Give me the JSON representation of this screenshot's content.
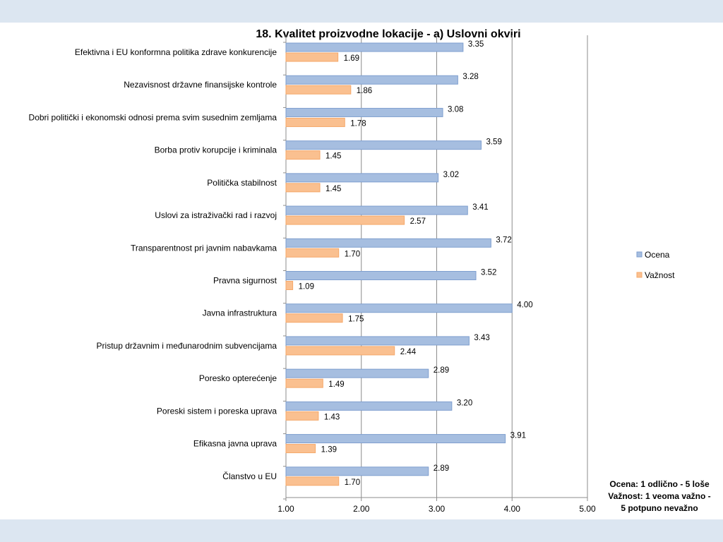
{
  "chart_data": {
    "type": "bar",
    "orientation": "horizontal",
    "title": "18. Kvalitet proizvodne lokacije - a) Uslovni okviri",
    "categories": [
      "Efektivna i EU konformna politika zdrave konkurencije",
      "Nezavisnost državne finansijske kontrole",
      "Dobri politički i ekonomski odnosi prema svim susednim zemljama",
      "Borba protiv korupcije i kriminala",
      "Politička stabilnost",
      "Uslovi za istraživački rad i razvoj",
      "Transparentnost pri javnim nabavkama",
      "Pravna sigurnost",
      "Javna infrastruktura",
      "Pristup državnim i međunarodnim subvencijama",
      "Poresko opterećenje",
      "Poreski sistem i poreska uprava",
      "Efikasna javna uprava",
      "Članstvo u EU"
    ],
    "series": [
      {
        "name": "Ocena",
        "color": "#a6bee0",
        "values": [
          3.35,
          3.28,
          3.08,
          3.59,
          3.02,
          3.41,
          3.72,
          3.52,
          4.0,
          3.43,
          2.89,
          3.2,
          3.91,
          2.89
        ],
        "labels": [
          "3.35",
          "3.28",
          "3.08",
          "3.59",
          "3.02",
          "3.41",
          "3.72",
          "3.52",
          "4.00",
          "3.43",
          "2.89",
          "3.20",
          "3.91",
          "2.89"
        ]
      },
      {
        "name": "Važnost",
        "color": "#fac090",
        "values": [
          1.69,
          1.86,
          1.78,
          1.45,
          1.45,
          2.57,
          1.7,
          1.09,
          1.75,
          2.44,
          1.49,
          1.43,
          1.39,
          1.7
        ],
        "labels": [
          "1.69",
          "1.86",
          "1.78",
          "1.45",
          "1.45",
          "2.57",
          "1.70",
          "1.09",
          "1.75",
          "2.44",
          "1.49",
          "1.43",
          "1.39",
          "1.70"
        ]
      }
    ],
    "xlim": [
      1,
      5
    ],
    "xticks": [
      1,
      2,
      3,
      4,
      5
    ],
    "xtick_labels": [
      "1.00",
      "2.00",
      "3.00",
      "4.00",
      "5.00"
    ],
    "xlabel": "",
    "ylabel": "",
    "grid": "vertical",
    "legend_placement": "right",
    "bar_outline_color": "#7f9fcf",
    "value_bar_outline_colors": [
      "#7f9fcf",
      "#f5a86a"
    ]
  },
  "note": {
    "lines": [
      "Ocena: 1 odlično - 5 loše",
      "Važnost: 1 veoma važno -",
      "5 potpuno nevažno"
    ]
  },
  "page": {
    "band_color": "#dce6f1"
  }
}
